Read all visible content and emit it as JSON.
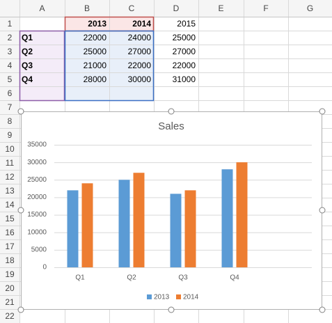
{
  "sheet": {
    "columns": [
      "A",
      "B",
      "C",
      "D",
      "E",
      "F",
      "G"
    ],
    "row_numbers": [
      1,
      2,
      3,
      4,
      5,
      6,
      7,
      8,
      9,
      10,
      11,
      12,
      13,
      14,
      15,
      16,
      17,
      18,
      19,
      20,
      21,
      22
    ],
    "rows": [
      [
        null,
        "2013",
        "2014",
        "2015"
      ],
      [
        "Q1",
        "22000",
        "24000",
        "25000"
      ],
      [
        "Q2",
        "25000",
        "27000",
        "27000"
      ],
      [
        "Q3",
        "21000",
        "22000",
        "22000"
      ],
      [
        "Q4",
        "28000",
        "30000",
        "31000"
      ]
    ]
  },
  "chart_data": {
    "type": "bar",
    "title": "Sales",
    "categories": [
      "Q1",
      "Q2",
      "Q3",
      "Q4"
    ],
    "series": [
      {
        "name": "2013",
        "color": "#5b9bd5",
        "values": [
          22000,
          25000,
          21000,
          28000
        ]
      },
      {
        "name": "2014",
        "color": "#ed7d31",
        "values": [
          24000,
          27000,
          22000,
          30000
        ]
      }
    ],
    "ylim": [
      0,
      35000
    ],
    "yticks": [
      0,
      5000,
      10000,
      15000,
      20000,
      25000,
      30000,
      35000
    ],
    "grid": true,
    "legend": "bottom"
  }
}
